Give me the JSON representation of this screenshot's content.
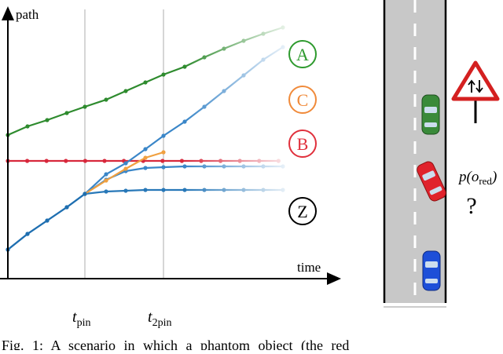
{
  "figure": {
    "y_axis_label": "path",
    "x_axis_label": "time",
    "t_pin": {
      "base": "t",
      "sub": "pin"
    },
    "t_2pin": {
      "base": "t",
      "sub": "2pin"
    },
    "curve_labels": [
      "A",
      "C",
      "B",
      "Z"
    ],
    "probability": {
      "before": "p(o",
      "sub": "red",
      "after": ")"
    },
    "question": "?",
    "caption": "Fig. 1:  A scenario in which a phantom object (the red"
  }
}
